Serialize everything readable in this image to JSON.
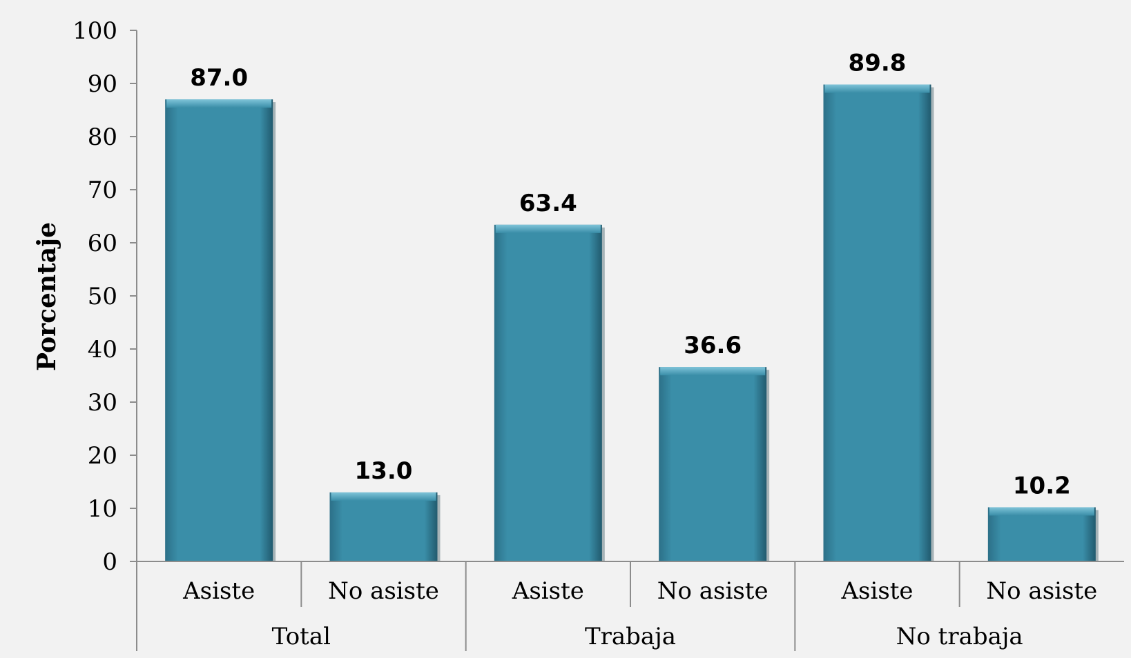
{
  "chart_data": {
    "type": "bar",
    "ylabel": "Porcentaje",
    "xlabel": "",
    "title": "",
    "ylim": [
      0,
      100
    ],
    "yticks": [
      0,
      10,
      20,
      30,
      40,
      50,
      60,
      70,
      80,
      90,
      100
    ],
    "groups": [
      "Total",
      "Trabaja",
      "No trabaja"
    ],
    "categories": [
      "Asiste",
      "No asiste",
      "Asiste",
      "No asiste",
      "Asiste",
      "No asiste"
    ],
    "values": [
      87.0,
      13.0,
      63.4,
      36.6,
      89.8,
      10.2
    ],
    "value_labels": [
      "87.0",
      "13.0",
      "63.4",
      "36.6",
      "89.8",
      "10.2"
    ],
    "bar_color": "#3a8ea8",
    "grid": false,
    "legend": "none"
  }
}
